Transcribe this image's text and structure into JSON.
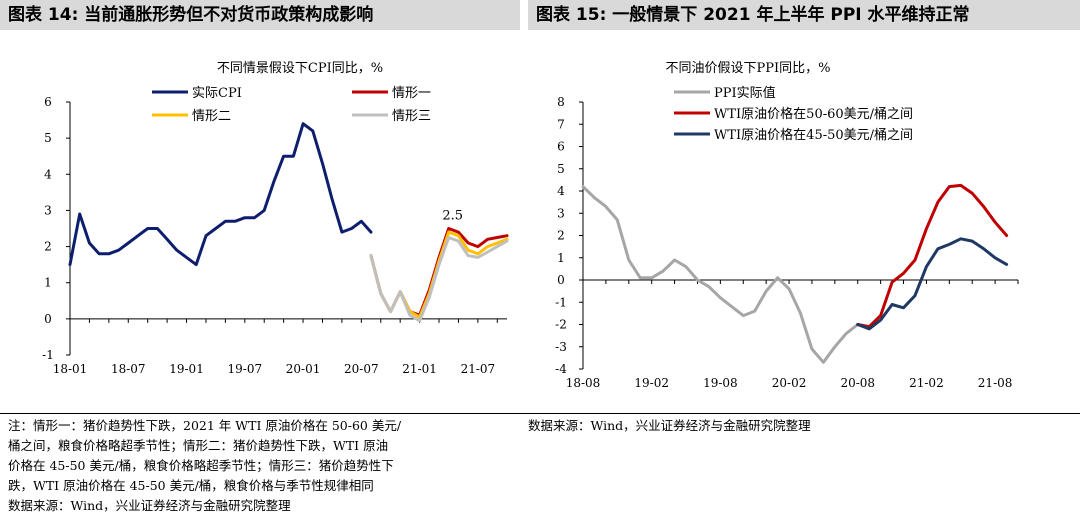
{
  "headers": {
    "left": "图表 14: 当前通胀形势但不对货币政策构成影响",
    "right": "图表 15: 一般情景下 2021 年上半年 PPI 水平维持正常"
  },
  "chart_data": [
    {
      "type": "line",
      "title": "不同情景假设下CPI同比，%",
      "xlabel": "",
      "ylabel": "",
      "x_ticks": [
        "18-01",
        "18-07",
        "19-01",
        "19-07",
        "20-01",
        "20-07",
        "21-01",
        "21-07"
      ],
      "ylim": [
        -1,
        6
      ],
      "y_ticks": [
        -1,
        0,
        1,
        2,
        3,
        4,
        5,
        6
      ],
      "annotation": {
        "text": "2.5",
        "x": "21-04",
        "y": 2.5
      },
      "legend_location": "top",
      "series": [
        {
          "name": "实际CPI",
          "color": "#0d1e6e",
          "x": [
            "18-01",
            "18-02",
            "18-03",
            "18-04",
            "18-05",
            "18-06",
            "18-07",
            "18-08",
            "18-09",
            "18-10",
            "18-11",
            "18-12",
            "19-01",
            "19-02",
            "19-03",
            "19-04",
            "19-05",
            "19-06",
            "19-07",
            "19-08",
            "19-09",
            "19-10",
            "19-11",
            "19-12",
            "20-01",
            "20-02",
            "20-03",
            "20-04",
            "20-05",
            "20-06",
            "20-07",
            "20-08"
          ],
          "values": [
            1.5,
            2.9,
            2.1,
            1.8,
            1.8,
            1.9,
            2.1,
            2.3,
            2.5,
            2.5,
            2.2,
            1.9,
            1.7,
            1.5,
            2.3,
            2.5,
            2.7,
            2.7,
            2.8,
            2.8,
            3.0,
            3.8,
            4.5,
            4.5,
            5.4,
            5.2,
            4.3,
            3.3,
            2.4,
            2.5,
            2.7,
            2.4
          ]
        },
        {
          "name": "情形一",
          "color": "#c00000",
          "x": [
            "20-08",
            "20-09",
            "20-10",
            "20-11",
            "20-12",
            "21-01",
            "21-02",
            "21-03",
            "21-04",
            "21-05",
            "21-06",
            "21-07",
            "21-08",
            "21-09",
            "21-10"
          ],
          "values": [
            1.75,
            0.7,
            0.2,
            0.75,
            0.2,
            0.1,
            0.8,
            1.7,
            2.5,
            2.4,
            2.1,
            2.0,
            2.2,
            2.25,
            2.3
          ]
        },
        {
          "name": "情形二",
          "color": "#ffc000",
          "x": [
            "20-08",
            "20-09",
            "20-10",
            "20-11",
            "20-12",
            "21-01",
            "21-02",
            "21-03",
            "21-04",
            "21-05",
            "21-06",
            "21-07",
            "21-08",
            "21-09",
            "21-10"
          ],
          "values": [
            1.75,
            0.7,
            0.2,
            0.75,
            0.2,
            0.05,
            0.7,
            1.6,
            2.4,
            2.3,
            1.9,
            1.8,
            2.0,
            2.1,
            2.2
          ]
        },
        {
          "name": "情形三",
          "color": "#bfbfbf",
          "x": [
            "20-08",
            "20-09",
            "20-10",
            "20-11",
            "20-12",
            "21-01",
            "21-02",
            "21-03",
            "21-04",
            "21-05",
            "21-06",
            "21-07",
            "21-08",
            "21-09",
            "21-10"
          ],
          "values": [
            1.75,
            0.7,
            0.2,
            0.75,
            0.1,
            -0.05,
            0.6,
            1.5,
            2.25,
            2.15,
            1.75,
            1.7,
            1.85,
            2.0,
            2.15
          ]
        }
      ]
    },
    {
      "type": "line",
      "title": "不同油价假设下PPI同比，%",
      "xlabel": "",
      "ylabel": "",
      "x_ticks": [
        "18-08",
        "19-02",
        "19-08",
        "20-02",
        "20-08",
        "21-02",
        "21-08"
      ],
      "ylim": [
        -4,
        8
      ],
      "y_ticks": [
        -4,
        -3,
        -2,
        -1,
        0,
        1,
        2,
        3,
        4,
        5,
        6,
        7,
        8
      ],
      "legend_location": "top-left",
      "series": [
        {
          "name": "PPI实际值",
          "color": "#a6a6a6",
          "x": [
            "18-08",
            "18-09",
            "18-10",
            "18-11",
            "18-12",
            "19-01",
            "19-02",
            "19-03",
            "19-04",
            "19-05",
            "19-06",
            "19-07",
            "19-08",
            "19-09",
            "19-10",
            "19-11",
            "19-12",
            "20-01",
            "20-02",
            "20-03",
            "20-04",
            "20-05",
            "20-06",
            "20-07",
            "20-08",
            "20-09"
          ],
          "values": [
            4.2,
            3.7,
            3.3,
            2.7,
            0.9,
            0.1,
            0.1,
            0.4,
            0.9,
            0.6,
            0.0,
            -0.3,
            -0.8,
            -1.2,
            -1.6,
            -1.4,
            -0.5,
            0.1,
            -0.4,
            -1.5,
            -3.1,
            -3.7,
            -3.0,
            -2.4,
            -2.0,
            -2.1
          ]
        },
        {
          "name": "WTI原油价格在50-60美元/桶之间",
          "color": "#c00000",
          "x": [
            "20-08",
            "20-09",
            "20-10",
            "20-11",
            "20-12",
            "21-01",
            "21-02",
            "21-03",
            "21-04",
            "21-05",
            "21-06",
            "21-07",
            "21-08",
            "21-09"
          ],
          "values": [
            -2.0,
            -2.1,
            -1.6,
            -0.1,
            0.3,
            0.9,
            2.3,
            3.5,
            4.2,
            4.25,
            3.9,
            3.3,
            2.6,
            2.0
          ]
        },
        {
          "name": "WTI原油价格在45-50美元/桶之间",
          "color": "#1f3864",
          "x": [
            "20-08",
            "20-09",
            "20-10",
            "20-11",
            "20-12",
            "21-01",
            "21-02",
            "21-03",
            "21-04",
            "21-05",
            "21-06",
            "21-07",
            "21-08",
            "21-09"
          ],
          "values": [
            -2.0,
            -2.2,
            -1.8,
            -1.1,
            -1.25,
            -0.7,
            0.6,
            1.4,
            1.6,
            1.85,
            1.75,
            1.4,
            1.0,
            0.7
          ]
        }
      ]
    }
  ],
  "notes": {
    "left_lines": [
      "注：情形一：猪价趋势性下跌，2021 年 WTI 原油价格在 50-60 美元/",
      "桶之间，粮食价格略超季节性；情形二：猪价趋势性下跌，WTI 原油",
      "价格在 45-50 美元/桶，粮食价格略超季节性；情形三：猪价趋势性下",
      "跌，WTI 原油价格在 45-50 美元/桶，粮食价格与季节性规律相同",
      "数据来源：Wind，兴业证券经济与金融研究院整理"
    ],
    "right_source": "数据来源：Wind，兴业证券经济与金融研究院整理"
  }
}
